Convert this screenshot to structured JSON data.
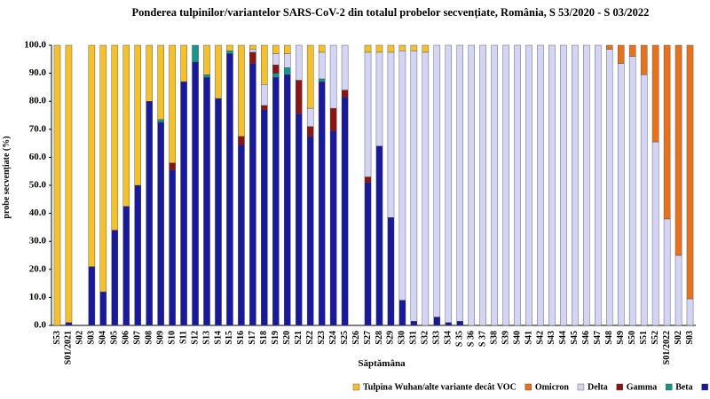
{
  "chart_data": {
    "type": "stacked_bar",
    "title": "Ponderea tulpinilor/variantelor SARS-CoV-2 din totalul probelor secvențiate, România, S 53/2020 - S 03/2022",
    "x_label": "Săptămâna",
    "y_label": "probe secvențiate (%)",
    "categories": [
      "S53",
      "S01/2021",
      "S02",
      "S03",
      "S04",
      "S05",
      "S06",
      "S07",
      "S08",
      "S09",
      "S10",
      "S11",
      "S12",
      "S13",
      "S14",
      "S15",
      "S16",
      "S17",
      "S18",
      "S19",
      "S20",
      "S21",
      "S22",
      "S23",
      "S24",
      "S25",
      "S26",
      "S27",
      "S28",
      "S29",
      "S30",
      "S31",
      "S32",
      "S33",
      "S34",
      "S 35",
      "S 36",
      "S 37",
      "S38",
      "S39",
      "S40",
      "S41",
      "S42",
      "S43",
      "S44",
      "S45",
      "S46",
      "S47",
      "S48",
      "S49",
      "S50",
      "S51",
      "S52",
      "S01/2022",
      "S02",
      "S03"
    ],
    "ylim": [
      0,
      100
    ],
    "yticks": [
      {
        "value": 0,
        "label": "0.0"
      },
      {
        "value": 10,
        "label": "10.0"
      },
      {
        "value": 20,
        "label": "20.0"
      },
      {
        "value": 30,
        "label": "30.0"
      },
      {
        "value": 40,
        "label": "40.0"
      },
      {
        "value": 50,
        "label": "50.0"
      },
      {
        "value": 60,
        "label": "60.0"
      },
      {
        "value": 70,
        "label": "70.0"
      },
      {
        "value": 80,
        "label": "80.0"
      },
      {
        "value": 90,
        "label": "90.0"
      },
      {
        "value": 100,
        "label": "100.0"
      }
    ],
    "series": [
      {
        "name": "Tulpina Wuhan/alte variante decât VOC",
        "color": "#f4c02c",
        "values": [
          100,
          99,
          null,
          79,
          88,
          66,
          57.5,
          50,
          20,
          26.5,
          42,
          13,
          0,
          10.5,
          19,
          2,
          32.5,
          1.5,
          14,
          3,
          3,
          0,
          22.5,
          2.5,
          0,
          0,
          null,
          2.5,
          2.5,
          2.5,
          2,
          2,
          2.5,
          0,
          0,
          0,
          0,
          0,
          0,
          0,
          0,
          0,
          0,
          0,
          0,
          0,
          0,
          0,
          0,
          0,
          0,
          0,
          0,
          0,
          0,
          0
        ]
      },
      {
        "name": "Omicron",
        "color": "#e8711c",
        "values": [
          0,
          0,
          null,
          0,
          0,
          0,
          0,
          0,
          0,
          0,
          0,
          0,
          0,
          0,
          0,
          0,
          0,
          0,
          0,
          0,
          0,
          0,
          0,
          0,
          0,
          0,
          null,
          0,
          0,
          0,
          0,
          0,
          0,
          0,
          0,
          0,
          0,
          0,
          0,
          0,
          0,
          0,
          0,
          0,
          0,
          0,
          0,
          0,
          1.5,
          6.5,
          4,
          10.5,
          34.5,
          62,
          75,
          90.5
        ]
      },
      {
        "name": "Delta",
        "color": "#d4d4f4",
        "values": [
          0,
          0,
          null,
          0,
          0,
          0,
          0,
          0,
          0,
          0,
          0,
          0,
          0,
          0,
          0,
          0,
          0,
          1,
          7.5,
          4,
          5,
          12.5,
          6.5,
          9.5,
          22.5,
          16,
          null,
          44.5,
          33.5,
          59,
          89,
          96.5,
          97.5,
          97,
          99,
          98.5,
          100,
          100,
          100,
          100,
          100,
          100,
          100,
          100,
          100,
          100,
          100,
          100,
          98.5,
          93.5,
          96,
          89.5,
          65.5,
          38,
          25,
          9.5
        ]
      },
      {
        "name": "Gamma",
        "color": "#8b1414",
        "values": [
          0,
          0,
          null,
          0,
          0,
          0,
          0,
          0,
          0,
          0,
          2.5,
          0,
          0,
          0,
          0,
          0,
          3,
          4,
          1.5,
          3,
          0,
          12,
          3.5,
          0,
          8,
          2.5,
          null,
          2,
          0,
          0,
          0,
          0,
          0,
          0,
          0,
          0,
          0,
          0,
          0,
          0,
          0,
          0,
          0,
          0,
          0,
          0,
          0,
          0,
          0,
          0,
          0,
          0,
          0,
          0,
          0,
          0
        ]
      },
      {
        "name": "Beta",
        "color": "#16958a",
        "values": [
          0,
          0,
          null,
          0,
          0,
          0,
          0,
          0,
          0,
          1,
          0,
          0,
          6,
          1,
          0,
          1,
          0,
          0,
          0,
          1.5,
          2.5,
          0,
          0,
          1,
          0,
          0,
          null,
          0,
          0,
          0,
          0,
          0,
          0,
          0,
          0,
          0,
          0,
          0,
          0,
          0,
          0,
          0,
          0,
          0,
          0,
          0,
          0,
          0,
          0,
          0,
          0,
          0,
          0,
          0,
          0,
          0
        ]
      },
      {
        "color": "#19199c",
        "values": [
          0,
          1,
          null,
          21,
          12,
          34,
          42.5,
          50,
          80,
          72.5,
          55.5,
          87,
          94,
          88.5,
          81,
          97,
          64.5,
          93.5,
          77,
          88.5,
          89.5,
          75.5,
          67.5,
          87,
          69.5,
          81.5,
          null,
          51,
          64,
          38.5,
          9,
          1.5,
          0,
          3,
          1,
          1.5,
          0,
          0,
          0,
          0,
          0,
          0,
          0,
          0,
          0,
          0,
          0,
          0,
          0,
          0,
          0,
          0,
          0,
          0,
          0,
          0
        ]
      }
    ]
  }
}
